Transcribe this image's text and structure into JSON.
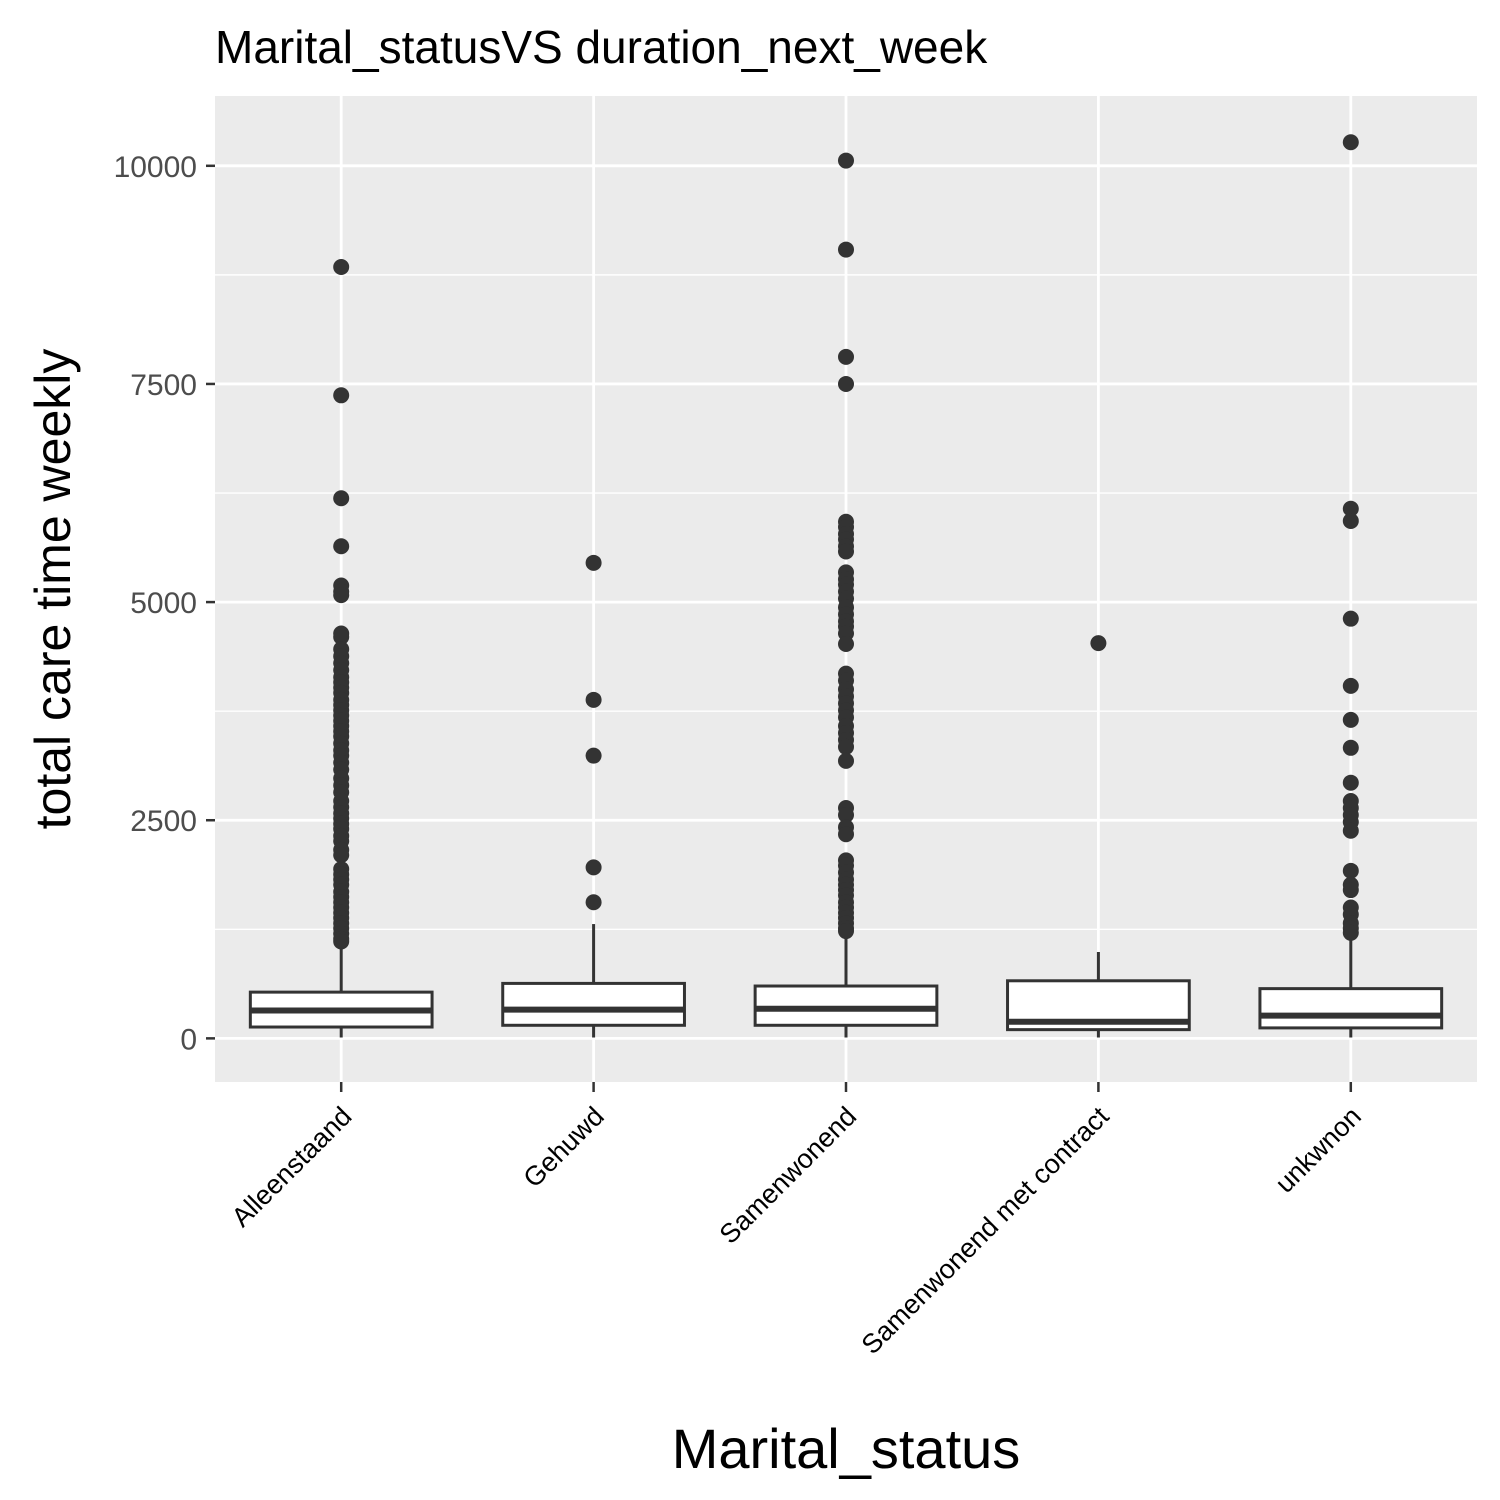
{
  "chart_data": {
    "type": "boxplot",
    "title": "Marital_statusVS duration_next_week",
    "xlabel": "Marital_status",
    "ylabel": "total care time weekly",
    "ylim": [
      -500,
      10800
    ],
    "yticks": [
      0,
      2500,
      5000,
      7500,
      10000
    ],
    "grid": true,
    "categories": [
      "Alleenstaand",
      "Gehuwd",
      "Samenwonend",
      "Samenwonend met contract",
      "unkwnon"
    ],
    "boxes": [
      {
        "category": "Alleenstaand",
        "whisker_low": 10,
        "q1": 130,
        "median": 320,
        "q3": 530,
        "whisker_high": 1080,
        "outliers": [
          8840,
          7370,
          6190,
          5640,
          5190,
          5120,
          5080,
          4640,
          4600,
          4460,
          4380,
          4300,
          4220,
          4140,
          4080,
          4020,
          3960,
          3880,
          3820,
          3760,
          3700,
          3640,
          3580,
          3520,
          3460,
          3380,
          3300,
          3240,
          3160,
          3080,
          2980,
          2900,
          2820,
          2720,
          2650,
          2580,
          2520,
          2460,
          2400,
          2320,
          2260,
          2160,
          2100,
          1940,
          1880,
          1820,
          1760,
          1680,
          1620,
          1560,
          1500,
          1440,
          1380,
          1320,
          1260,
          1200,
          1140,
          1110
        ]
      },
      {
        "category": "Gehuwd",
        "whisker_low": 10,
        "q1": 150,
        "median": 330,
        "q3": 630,
        "whisker_high": 1310,
        "outliers": [
          5450,
          3880,
          3240,
          1960,
          1560
        ]
      },
      {
        "category": "Samenwonend",
        "whisker_low": 10,
        "q1": 150,
        "median": 340,
        "q3": 600,
        "whisker_high": 1220,
        "outliers": [
          10060,
          9040,
          7810,
          7500,
          5920,
          5860,
          5780,
          5720,
          5640,
          5580,
          5340,
          5260,
          5200,
          5120,
          5040,
          4940,
          4860,
          4780,
          4720,
          4640,
          4520,
          4180,
          4100,
          4000,
          3920,
          3840,
          3760,
          3680,
          3580,
          3500,
          3420,
          3340,
          3180,
          2640,
          2560,
          2420,
          2340,
          2040,
          1980,
          1900,
          1820,
          1760,
          1700,
          1640,
          1560,
          1500,
          1440,
          1380,
          1320,
          1260,
          1230
        ]
      },
      {
        "category": "Samenwonend met contract",
        "whisker_low": 10,
        "q1": 100,
        "median": 190,
        "q3": 660,
        "whisker_high": 990,
        "outliers": [
          4530
        ]
      },
      {
        "category": "unkwnon",
        "whisker_low": 10,
        "q1": 120,
        "median": 260,
        "q3": 570,
        "whisker_high": 1200,
        "outliers": [
          10270,
          6070,
          5930,
          4810,
          4040,
          3650,
          3330,
          2930,
          2720,
          2640,
          2560,
          2480,
          2380,
          1920,
          1760,
          1700,
          1500,
          1420,
          1320,
          1260,
          1210
        ]
      }
    ],
    "colors": {
      "panel": "#ebebeb",
      "grid": "#ffffff",
      "box_fill": "#ffffff",
      "box_line": "#333333",
      "point": "#333333",
      "axis_ticks": "#333333"
    }
  }
}
